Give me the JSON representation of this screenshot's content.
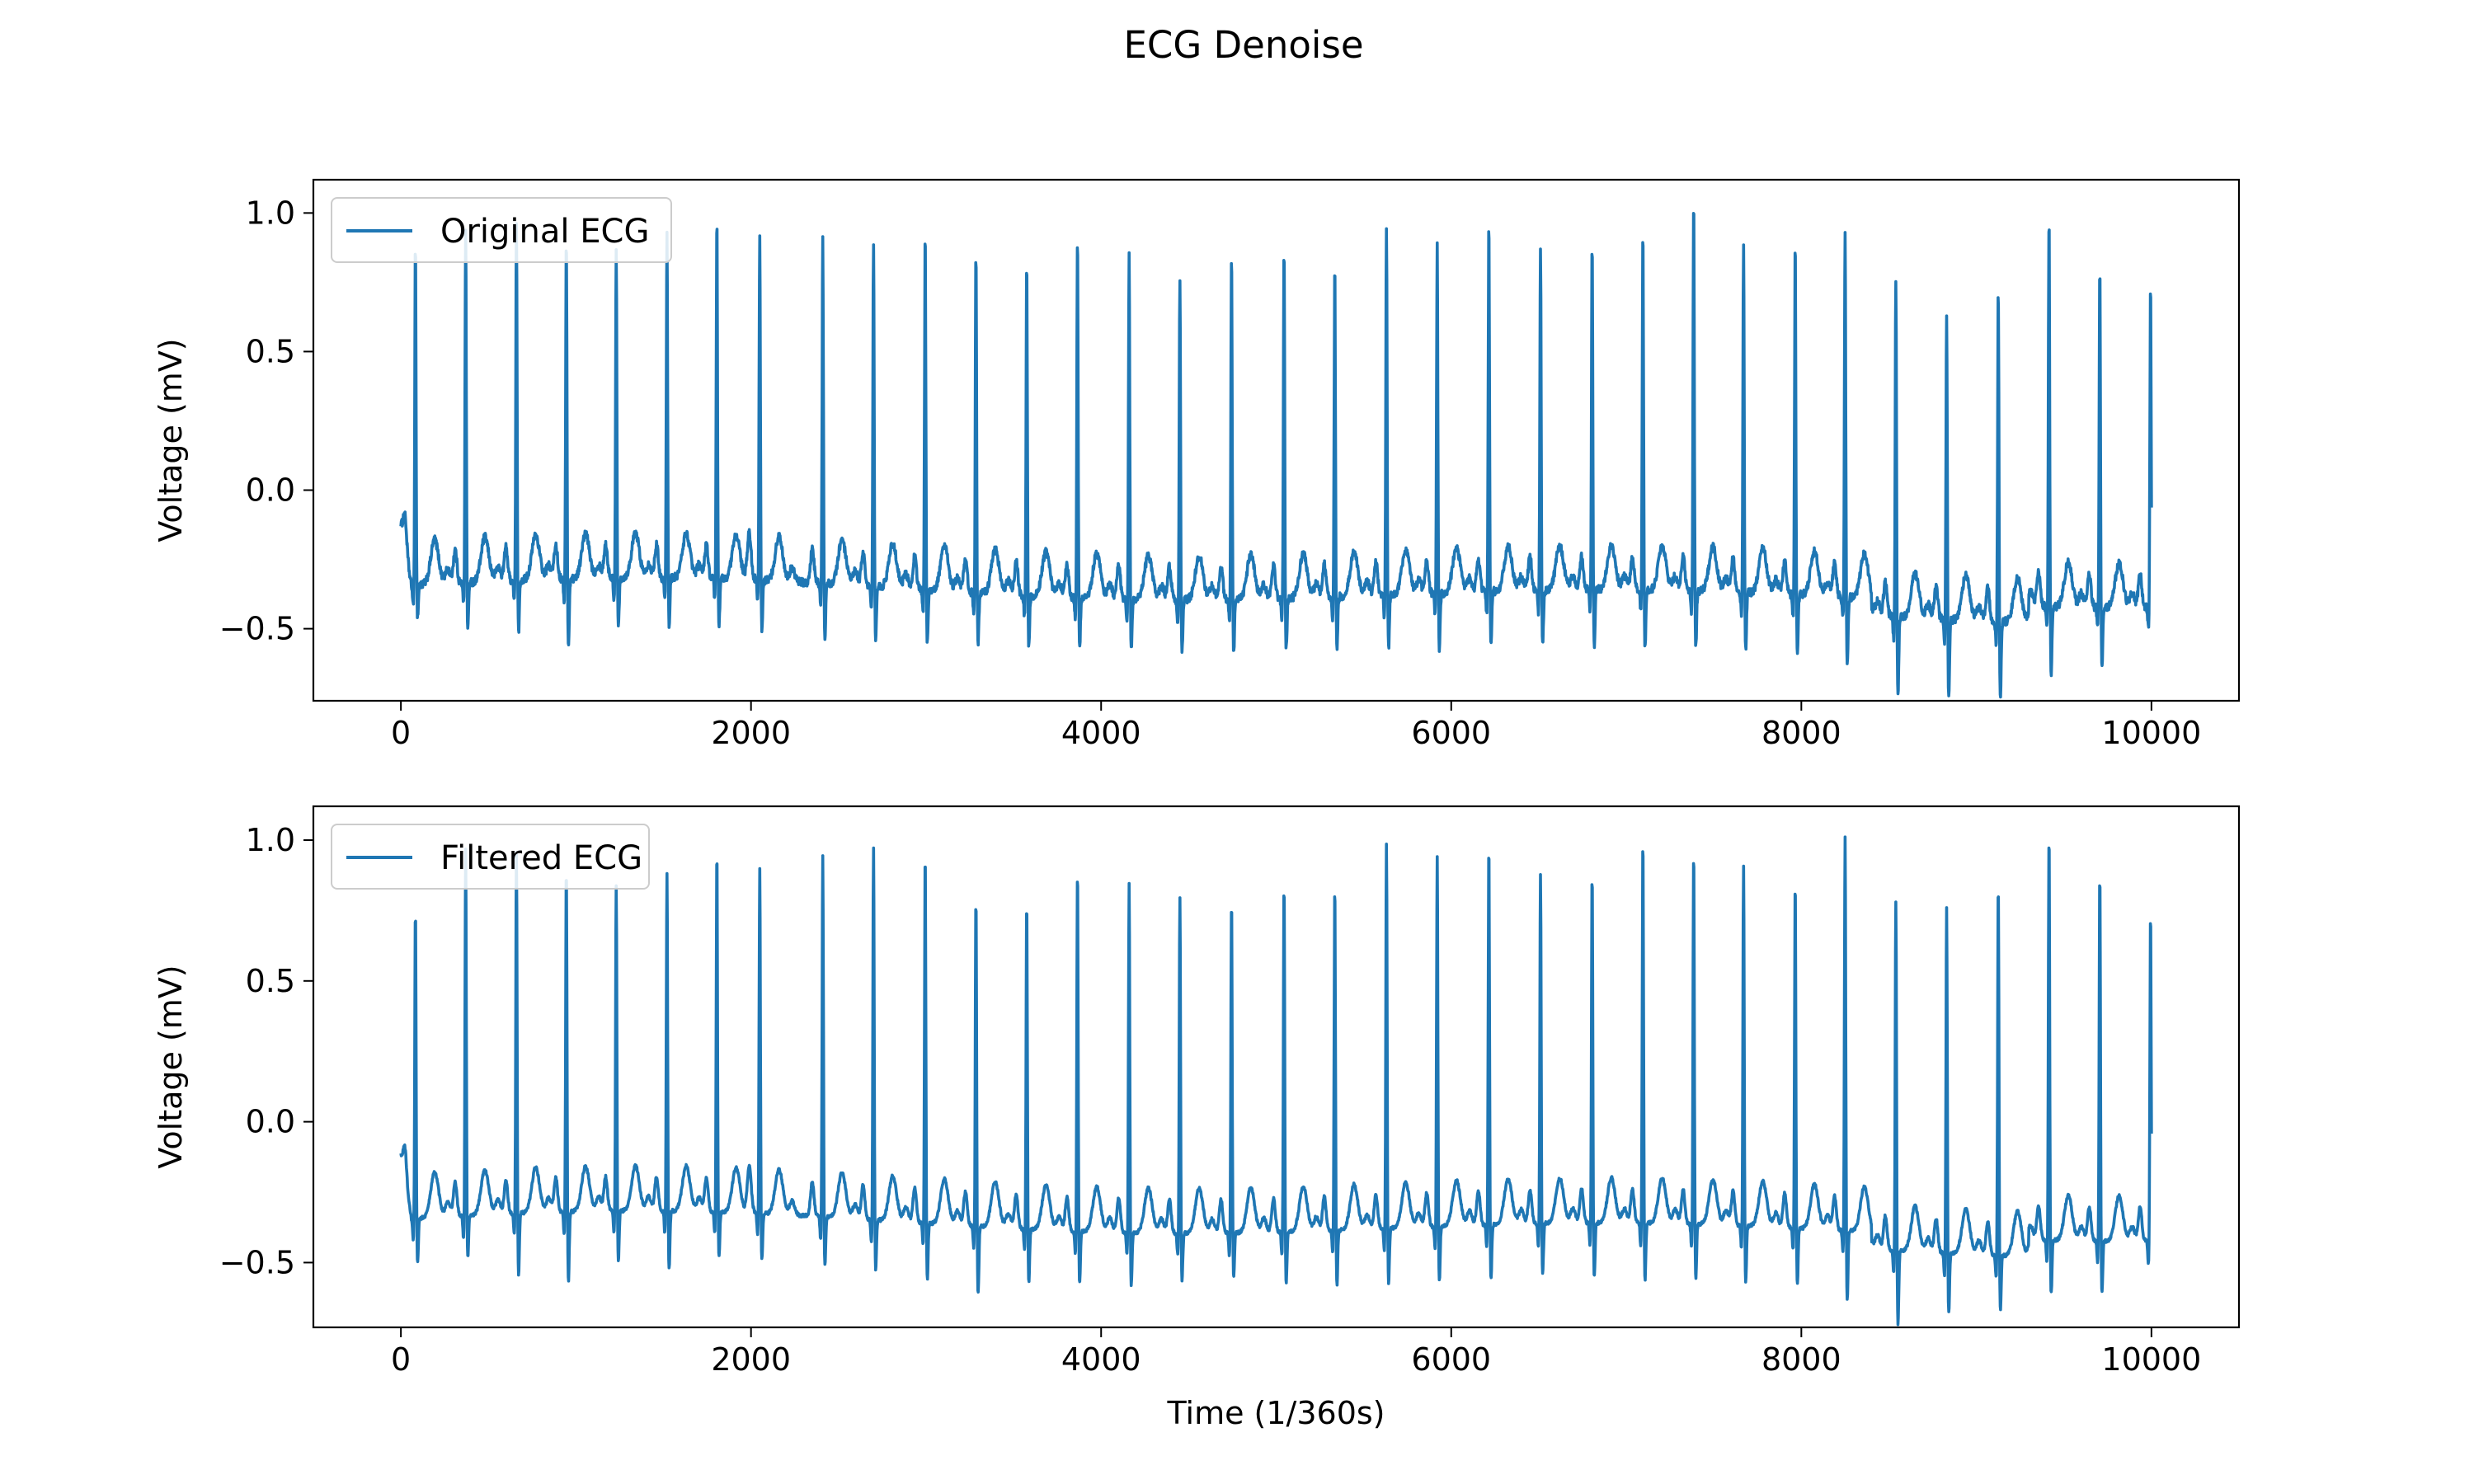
{
  "figure_title": "ECG Denoise",
  "colors": {
    "series": "#1f77b4",
    "axes": "#000000",
    "background": "#ffffff",
    "legend_border": "#cccccc"
  },
  "chart_data": [
    {
      "type": "line",
      "title": "",
      "xlabel": "",
      "ylabel": "Voltage (mV)",
      "xlim": [
        -500,
        10500
      ],
      "ylim": [
        -0.76,
        1.12
      ],
      "xticks": [
        0,
        2000,
        4000,
        6000,
        8000,
        10000
      ],
      "xtick_labels": [
        "0",
        "2000",
        "4000",
        "6000",
        "8000",
        "10000"
      ],
      "yticks": [
        -0.5,
        0.0,
        0.5,
        1.0
      ],
      "ytick_labels": [
        "−0.5",
        "0.0",
        "0.5",
        "1.0"
      ],
      "grid": false,
      "legend_position": "upper-left",
      "series": [
        {
          "name": "Original ECG",
          "color": "#1f77b4",
          "beats": [
            {
              "x": 83,
              "peak": 0.86,
              "trough": -0.47
            },
            {
              "x": 370,
              "peak": 0.92,
              "trough": -0.53
            },
            {
              "x": 660,
              "peak": 0.92,
              "trough": -0.56
            },
            {
              "x": 945,
              "peak": 0.86,
              "trough": -0.63
            },
            {
              "x": 1230,
              "peak": 0.82,
              "trough": -0.55
            },
            {
              "x": 1520,
              "peak": 0.88,
              "trough": -0.53
            },
            {
              "x": 1805,
              "peak": 0.94,
              "trough": -0.53
            },
            {
              "x": 2050,
              "peak": 0.88,
              "trough": -0.54
            },
            {
              "x": 2410,
              "peak": 0.88,
              "trough": -0.57
            },
            {
              "x": 2700,
              "peak": 0.88,
              "trough": -0.56
            },
            {
              "x": 2995,
              "peak": 0.93,
              "trough": -0.56
            },
            {
              "x": 3285,
              "peak": 0.87,
              "trough": -0.55
            },
            {
              "x": 3575,
              "peak": 0.84,
              "trough": -0.55
            },
            {
              "x": 3865,
              "peak": 0.94,
              "trough": -0.55
            },
            {
              "x": 4160,
              "peak": 0.89,
              "trough": -0.54
            },
            {
              "x": 4450,
              "peak": 0.8,
              "trough": -0.56
            },
            {
              "x": 4745,
              "peak": 0.88,
              "trough": -0.56
            },
            {
              "x": 5045,
              "peak": 0.91,
              "trough": -0.55
            },
            {
              "x": 5335,
              "peak": 0.83,
              "trough": -0.55
            },
            {
              "x": 5630,
              "peak": 0.97,
              "trough": -0.56
            },
            {
              "x": 5920,
              "peak": 0.89,
              "trough": -0.57
            },
            {
              "x": 6215,
              "peak": 0.98,
              "trough": -0.57
            },
            {
              "x": 6510,
              "peak": 0.88,
              "trough": -0.57
            },
            {
              "x": 6805,
              "peak": 0.89,
              "trough": -0.58
            },
            {
              "x": 7095,
              "peak": 0.94,
              "trough": -0.58
            },
            {
              "x": 7385,
              "peak": 1.05,
              "trough": -0.57
            },
            {
              "x": 7670,
              "peak": 0.88,
              "trough": -0.58
            },
            {
              "x": 7965,
              "peak": 0.91,
              "trough": -0.58
            },
            {
              "x": 8250,
              "peak": 0.96,
              "trough": -0.63
            },
            {
              "x": 8540,
              "peak": 0.86,
              "trough": -0.66
            },
            {
              "x": 8830,
              "peak": 0.73,
              "trough": -0.67
            },
            {
              "x": 9125,
              "peak": 0.84,
              "trough": -0.66
            },
            {
              "x": 9415,
              "peak": 1.05,
              "trough": -0.62
            },
            {
              "x": 9705,
              "peak": 0.86,
              "trough": -0.6
            },
            {
              "x": 9995,
              "peak": 0.8,
              "trough": -0.65
            }
          ]
        }
      ]
    },
    {
      "type": "line",
      "title": "",
      "xlabel": "Time (1/360s)",
      "ylabel": "Voltage (mV)",
      "xlim": [
        -500,
        10500
      ],
      "ylim": [
        -0.73,
        1.12
      ],
      "xticks": [
        0,
        2000,
        4000,
        6000,
        8000,
        10000
      ],
      "xtick_labels": [
        "0",
        "2000",
        "4000",
        "6000",
        "8000",
        "10000"
      ],
      "yticks": [
        -0.5,
        0.0,
        0.5,
        1.0
      ],
      "ytick_labels": [
        "−0.5",
        "0.0",
        "0.5",
        "1.0"
      ],
      "grid": false,
      "legend_position": "upper-left",
      "series": [
        {
          "name": "Filtered ECG",
          "color": "#1f77b4",
          "beats": [
            {
              "x": 83,
              "peak": 0.73,
              "trough": -0.52
            },
            {
              "x": 370,
              "peak": 0.94,
              "trough": -0.51
            },
            {
              "x": 660,
              "peak": 0.92,
              "trough": -0.59
            },
            {
              "x": 945,
              "peak": 0.86,
              "trough": -0.63
            },
            {
              "x": 1230,
              "peak": 0.79,
              "trough": -0.55
            },
            {
              "x": 1520,
              "peak": 0.84,
              "trough": -0.58
            },
            {
              "x": 1805,
              "peak": 0.92,
              "trough": -0.52
            },
            {
              "x": 2050,
              "peak": 0.86,
              "trough": -0.53
            },
            {
              "x": 2410,
              "peak": 0.92,
              "trough": -0.54
            },
            {
              "x": 2700,
              "peak": 0.96,
              "trough": -0.54
            },
            {
              "x": 2995,
              "peak": 0.95,
              "trough": -0.57
            },
            {
              "x": 3285,
              "peak": 0.81,
              "trough": -0.62
            },
            {
              "x": 3575,
              "peak": 0.8,
              "trough": -0.55
            },
            {
              "x": 3865,
              "peak": 0.92,
              "trough": -0.55
            },
            {
              "x": 4160,
              "peak": 0.88,
              "trough": -0.55
            },
            {
              "x": 4450,
              "peak": 0.83,
              "trough": -0.53
            },
            {
              "x": 4745,
              "peak": 0.82,
              "trough": -0.52
            },
            {
              "x": 5045,
              "peak": 0.87,
              "trough": -0.55
            },
            {
              "x": 5335,
              "peak": 0.86,
              "trough": -0.56
            },
            {
              "x": 5630,
              "peak": 1.0,
              "trough": -0.57
            },
            {
              "x": 5920,
              "peak": 0.95,
              "trough": -0.56
            },
            {
              "x": 6215,
              "peak": 0.99,
              "trough": -0.56
            },
            {
              "x": 6510,
              "peak": 0.87,
              "trough": -0.55
            },
            {
              "x": 6805,
              "peak": 0.88,
              "trough": -0.56
            },
            {
              "x": 7095,
              "peak": 1.0,
              "trough": -0.57
            },
            {
              "x": 7385,
              "peak": 0.96,
              "trough": -0.56
            },
            {
              "x": 7670,
              "peak": 0.91,
              "trough": -0.57
            },
            {
              "x": 7965,
              "peak": 0.87,
              "trough": -0.57
            },
            {
              "x": 8250,
              "peak": 1.04,
              "trough": -0.63
            },
            {
              "x": 8540,
              "peak": 0.88,
              "trough": -0.64
            },
            {
              "x": 8830,
              "peak": 0.86,
              "trough": -0.58
            },
            {
              "x": 9125,
              "peak": 0.96,
              "trough": -0.56
            },
            {
              "x": 9415,
              "peak": 1.08,
              "trough": -0.56
            },
            {
              "x": 9705,
              "peak": 0.94,
              "trough": -0.55
            },
            {
              "x": 9995,
              "peak": 0.8,
              "trough": -0.59
            }
          ]
        }
      ]
    }
  ]
}
